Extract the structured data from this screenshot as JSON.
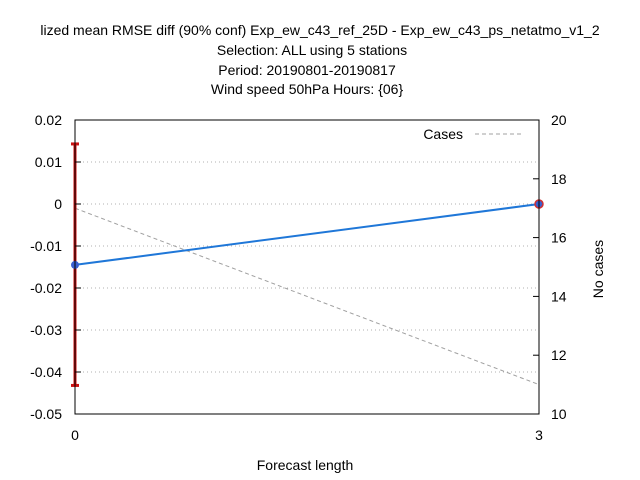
{
  "chart_data": {
    "type": "line",
    "title_lines": [
      "lized mean RMSE diff (90% conf) Exp_ew_c43_ref_25D - Exp_ew_c43_ps_netatmo_v1_2",
      "Selection: ALL using      5 stations",
      "Period: 20190801-20190817",
      "Wind speed 50hPa   Hours: {06}"
    ],
    "xlabel": "Forecast length",
    "ylabel": "",
    "y2label": "No cases",
    "x": [
      0,
      3
    ],
    "xlim": [
      0,
      3
    ],
    "x_ticks": [
      "0",
      "3"
    ],
    "ylim": [
      -0.05,
      0.02
    ],
    "y_ticks": [
      "0.02",
      "0.01",
      "0",
      "-0.01",
      "-0.02",
      "-0.03",
      "-0.04",
      "-0.05"
    ],
    "y2lim": [
      10,
      20
    ],
    "y2_ticks": [
      "20",
      "18",
      "16",
      "14",
      "12",
      "10"
    ],
    "grid": true,
    "legend_position": "top-right",
    "series": [
      {
        "values": [
          -0.0145,
          0.0
        ],
        "color": "#1f77d8",
        "marker_color": "#3a5fd0",
        "marker_color_last": "#d03030",
        "axis": "left",
        "style": "solid"
      },
      {
        "name": "Cases",
        "values": [
          17,
          11
        ],
        "color": "#a0a0a0",
        "axis": "right",
        "style": "dashed"
      }
    ],
    "error_bars": [
      {
        "x": 0,
        "low": -0.0432,
        "high": 0.0143,
        "color": "#cc1111"
      }
    ]
  }
}
